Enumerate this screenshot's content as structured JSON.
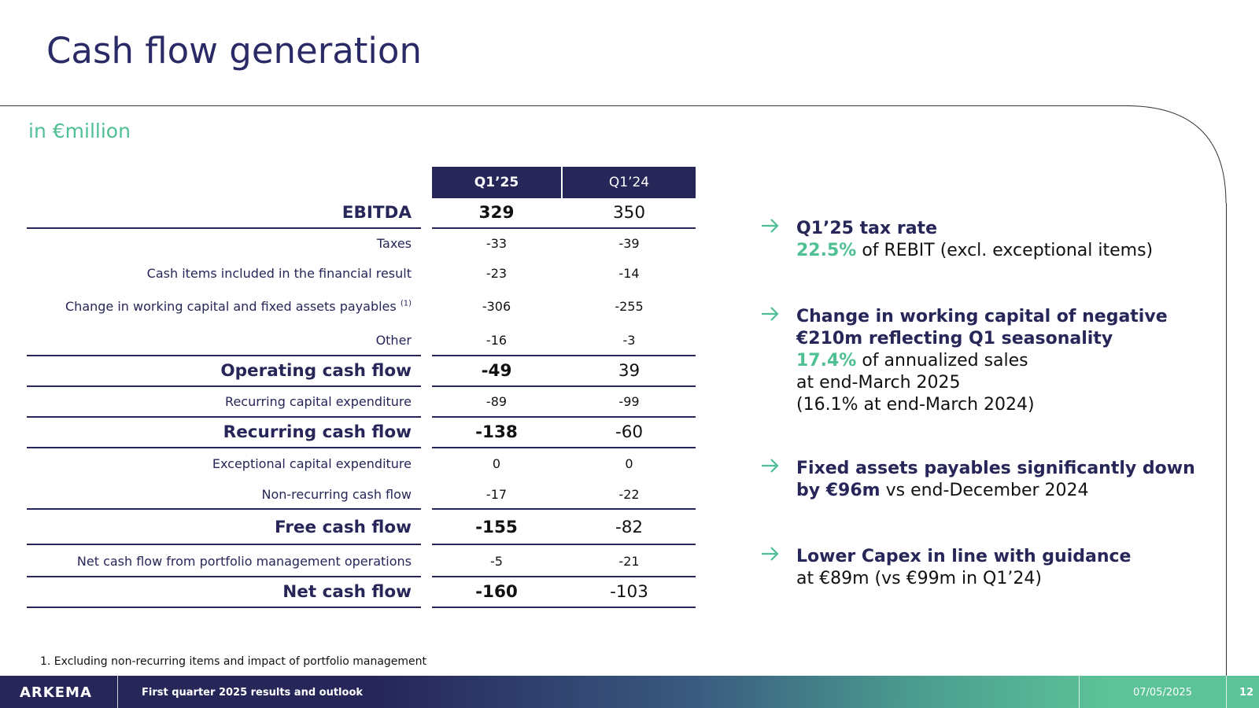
{
  "slide": {
    "title": "Cash flow generation",
    "unit_label": "in €million"
  },
  "table": {
    "columns": [
      "Q1’25",
      "Q1’24"
    ],
    "rows": [
      {
        "label": "EBITDA",
        "q1_25": "329",
        "q1_24": "350"
      },
      {
        "label": "Taxes",
        "q1_25": "-33",
        "q1_24": "-39"
      },
      {
        "label": "Cash items included in the financial result",
        "q1_25": "-23",
        "q1_24": "-14"
      },
      {
        "label": "Change in working capital and fixed assets payables",
        "note": "(1)",
        "q1_25": "-306",
        "q1_24": "-255"
      },
      {
        "label": "Other",
        "q1_25": "-16",
        "q1_24": "-3"
      },
      {
        "label": "Operating cash flow",
        "q1_25": "-49",
        "q1_24": "39"
      },
      {
        "label": "Recurring capital expenditure",
        "q1_25": "-89",
        "q1_24": "-99"
      },
      {
        "label": "Recurring cash flow",
        "q1_25": "-138",
        "q1_24": "-60"
      },
      {
        "label": "Exceptional capital expenditure",
        "q1_25": "0",
        "q1_24": "0"
      },
      {
        "label": "Non-recurring cash flow",
        "q1_25": "-17",
        "q1_24": "-22"
      },
      {
        "label": "Free cash flow",
        "q1_25": "-155",
        "q1_24": "-82"
      },
      {
        "label": "Net cash flow from portfolio management operations",
        "q1_25": "-5",
        "q1_24": "-21"
      },
      {
        "label": "Net cash flow",
        "q1_25": "-160",
        "q1_24": "-103"
      }
    ]
  },
  "bullets": [
    {
      "heading": "Q1’25 tax rate",
      "highlight": "22.5%",
      "text": " of REBIT (excl. exceptional items)"
    },
    {
      "heading_line1": "Change in working capital of negative",
      "heading_line2": "€210m reflecting Q1 seasonality",
      "highlight": "17.4%",
      "text1": " of annualized sales",
      "text2": "at end-March 2025",
      "text3": "(16.1% at end-March 2024)"
    },
    {
      "heading_line1": "Fixed assets payables significantly down",
      "heading_line2": "by €96m",
      "text": " vs end-December 2024"
    },
    {
      "heading": "Lower Capex in line with guidance",
      "text": "at €89m (vs €99m in Q1’24)"
    }
  ],
  "footnote": "1. Excluding non-recurring items and impact of portfolio management",
  "footer": {
    "logo": "ARKEMA",
    "title": "First quarter 2025 results and outlook",
    "date": "07/05/2025",
    "page": "12"
  },
  "colors": {
    "navy": "#262659",
    "green": "#4fbf94"
  },
  "icons": [
    "arrow-right-icon",
    "arkema-logo"
  ]
}
